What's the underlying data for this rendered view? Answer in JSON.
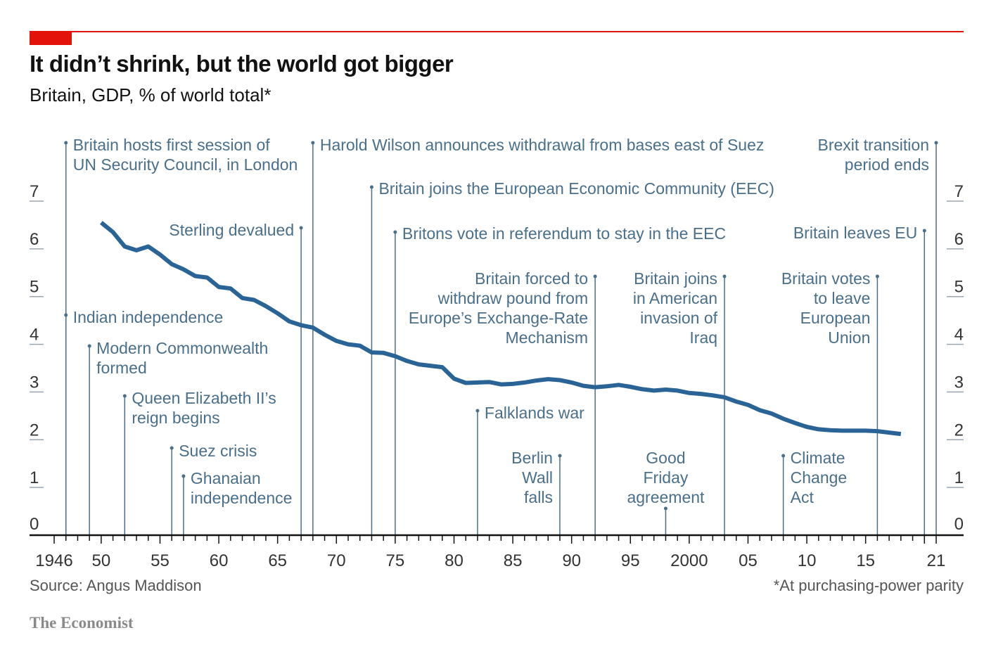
{
  "title": "It didn’t shrink, but the world got bigger",
  "subtitle": "Britain, GDP, % of world total*",
  "source": "Source: Angus Maddison",
  "footnote": "*At purchasing-power parity",
  "brand": "The Economist",
  "colors": {
    "accent": "#e3120b",
    "line": "#2a6496",
    "annotation": "#4a6f8a",
    "axis": "#121212"
  },
  "chart_data": {
    "type": "line",
    "title": "It didn’t shrink, but the world got bigger",
    "subtitle": "Britain, GDP, % of world total*",
    "xlabel": "",
    "ylabel": "",
    "xlim": [
      1946,
      2021
    ],
    "ylim": [
      0,
      7
    ],
    "yticks": [
      0,
      1,
      2,
      3,
      4,
      5,
      6,
      7
    ],
    "xtick_labels": [
      {
        "x": 1946,
        "label": "1946"
      },
      {
        "x": 1950,
        "label": "50"
      },
      {
        "x": 1955,
        "label": "55"
      },
      {
        "x": 1960,
        "label": "60"
      },
      {
        "x": 1965,
        "label": "65"
      },
      {
        "x": 1970,
        "label": "70"
      },
      {
        "x": 1975,
        "label": "75"
      },
      {
        "x": 1980,
        "label": "80"
      },
      {
        "x": 1985,
        "label": "85"
      },
      {
        "x": 1990,
        "label": "90"
      },
      {
        "x": 1995,
        "label": "95"
      },
      {
        "x": 2000,
        "label": "2000"
      },
      {
        "x": 2005,
        "label": "05"
      },
      {
        "x": 2010,
        "label": "10"
      },
      {
        "x": 2015,
        "label": "15"
      },
      {
        "x": 2021,
        "label": "21"
      }
    ],
    "grid": false,
    "series": [
      {
        "x": [
          1950,
          1951,
          1952,
          1953,
          1954,
          1955,
          1956,
          1957,
          1958,
          1959,
          1960,
          1961,
          1962,
          1963,
          1964,
          1965,
          1966,
          1967,
          1968,
          1969,
          1970,
          1971,
          1972,
          1973,
          1974,
          1975,
          1976,
          1977,
          1978,
          1979,
          1980,
          1981,
          1982,
          1983,
          1984,
          1985,
          1986,
          1987,
          1988,
          1989,
          1990,
          1991,
          1992,
          1993,
          1994,
          1995,
          1996,
          1997,
          1998,
          1999,
          2000,
          2001,
          2002,
          2003,
          2004,
          2005,
          2006,
          2007,
          2008,
          2009,
          2010,
          2011,
          2012,
          2013,
          2014,
          2015,
          2016,
          2017,
          2018
        ],
        "values": [
          6.55,
          6.35,
          6.05,
          5.97,
          6.05,
          5.88,
          5.68,
          5.57,
          5.43,
          5.4,
          5.2,
          5.17,
          4.97,
          4.93,
          4.8,
          4.65,
          4.48,
          4.4,
          4.35,
          4.2,
          4.07,
          4.0,
          3.97,
          3.83,
          3.82,
          3.75,
          3.65,
          3.58,
          3.55,
          3.52,
          3.28,
          3.19,
          3.2,
          3.21,
          3.16,
          3.17,
          3.2,
          3.24,
          3.27,
          3.25,
          3.2,
          3.13,
          3.1,
          3.12,
          3.15,
          3.11,
          3.06,
          3.03,
          3.05,
          3.03,
          2.98,
          2.96,
          2.93,
          2.89,
          2.8,
          2.73,
          2.62,
          2.55,
          2.44,
          2.35,
          2.27,
          2.22,
          2.2,
          2.19,
          2.19,
          2.19,
          2.18,
          2.15,
          2.12
        ]
      }
    ],
    "annotations": [
      {
        "x": 1947,
        "lines": [
          "Britain hosts first session of",
          "UN Security Council, in London"
        ]
      },
      {
        "x": 1947,
        "lines": [
          "Indian independence"
        ]
      },
      {
        "x": 1949,
        "lines": [
          "Modern Commonwealth",
          "formed"
        ]
      },
      {
        "x": 1952,
        "lines": [
          "Queen Elizabeth II’s",
          "reign begins"
        ]
      },
      {
        "x": 1956,
        "lines": [
          "Suez crisis"
        ]
      },
      {
        "x": 1957,
        "lines": [
          "Ghanaian",
          "independence"
        ]
      },
      {
        "x": 1967,
        "lines": [
          "Sterling devalued"
        ]
      },
      {
        "x": 1968,
        "lines": [
          "Harold Wilson announces withdrawal from bases east of Suez"
        ]
      },
      {
        "x": 1973,
        "lines": [
          "Britain joins the European Economic Community (EEC)"
        ]
      },
      {
        "x": 1975,
        "lines": [
          "Britons vote in referendum to stay in the EEC"
        ]
      },
      {
        "x": 1982,
        "lines": [
          "Falklands war"
        ]
      },
      {
        "x": 1989,
        "lines": [
          "Berlin",
          "Wall",
          "falls"
        ]
      },
      {
        "x": 1992,
        "lines": [
          "Britain forced to",
          "withdraw pound from",
          "Europe’s Exchange-Rate",
          "Mechanism"
        ]
      },
      {
        "x": 1998,
        "lines": [
          "Good",
          "Friday",
          "agreement"
        ]
      },
      {
        "x": 2003,
        "lines": [
          "Britain joins",
          "in American",
          "invasion of",
          "Iraq"
        ]
      },
      {
        "x": 2008,
        "lines": [
          "Climate",
          "Change",
          "Act"
        ]
      },
      {
        "x": 2016,
        "lines": [
          "Britain votes",
          "to leave",
          "European",
          "Union"
        ]
      },
      {
        "x": 2020,
        "lines": [
          "Britain leaves EU"
        ]
      },
      {
        "x": 2021,
        "lines": [
          "Brexit transition",
          "period ends"
        ]
      }
    ]
  }
}
